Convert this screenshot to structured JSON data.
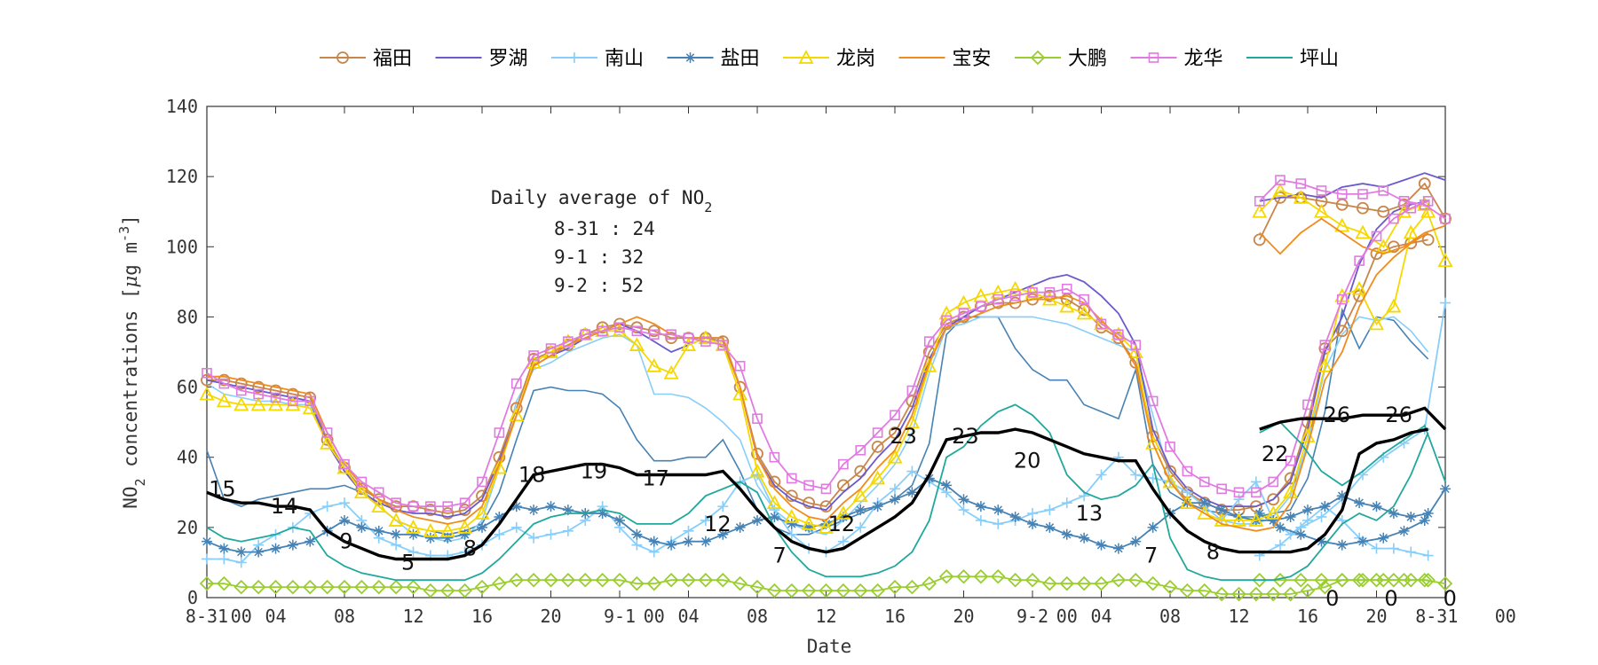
{
  "chart_data": {
    "type": "line",
    "title": "",
    "xlabel": "Date",
    "ylabel": "NO₂ concentrations [μg m⁻³]",
    "ylabel_parts": {
      "a": "NO",
      "sub": "2",
      "b": " concentrations [",
      "mu": "μ",
      "c": "g m",
      "sup": "-3",
      "d": "]"
    },
    "ylim": [
      0,
      140
    ],
    "yticks": [
      0,
      20,
      40,
      60,
      80,
      100,
      120,
      140
    ],
    "xlim": [
      0,
      72
    ],
    "xticks": [
      {
        "x": 0,
        "label": "8-31"
      },
      {
        "x": 4,
        "label": "04"
      },
      {
        "x": 8,
        "label": "08"
      },
      {
        "x": 12,
        "label": "12"
      },
      {
        "x": 16,
        "label": "16"
      },
      {
        "x": 20,
        "label": "20"
      },
      {
        "x": 24,
        "label": "9-1"
      },
      {
        "x": 28,
        "label": "04"
      },
      {
        "x": 32,
        "label": "08"
      },
      {
        "x": 36,
        "label": "12"
      },
      {
        "x": 40,
        "label": "16"
      },
      {
        "x": 44,
        "label": "20"
      },
      {
        "x": 48,
        "label": "9-2"
      },
      {
        "x": 52,
        "label": "04"
      },
      {
        "x": 56,
        "label": "08"
      },
      {
        "x": 60,
        "label": "12"
      },
      {
        "x": 64,
        "label": "16"
      },
      {
        "x": 68,
        "label": "20"
      }
    ],
    "xtick_overlays": [
      {
        "x": 2,
        "label": "00"
      },
      {
        "x": 26,
        "label": "00"
      },
      {
        "x": 50,
        "label": "00"
      },
      {
        "x": 71.5,
        "label": "8-31"
      },
      {
        "x": 75.5,
        "label": "00"
      }
    ],
    "legend_position": "top",
    "annotation": {
      "title_main": "Daily average of NO",
      "title_sub": "2",
      "lines": [
        "8-31 : 24",
        "9-1 : 32",
        "9-2 : 52"
      ]
    },
    "average_labels": [
      {
        "x": 1,
        "y": 31,
        "label": "15"
      },
      {
        "x": 5,
        "y": 26,
        "label": "14"
      },
      {
        "x": 9,
        "y": 16,
        "label": "9"
      },
      {
        "x": 13,
        "y": 10,
        "label": "5"
      },
      {
        "x": 17,
        "y": 14,
        "label": "8"
      },
      {
        "x": 21,
        "y": 35,
        "label": "18"
      },
      {
        "x": 25,
        "y": 36,
        "label": "19"
      },
      {
        "x": 29,
        "y": 34,
        "label": "17"
      },
      {
        "x": 33,
        "y": 21,
        "label": "12"
      },
      {
        "x": 37,
        "y": 12,
        "label": "7"
      },
      {
        "x": 41,
        "y": 21,
        "label": "12"
      },
      {
        "x": 45,
        "y": 46,
        "label": "23"
      },
      {
        "x": 49,
        "y": 46,
        "label": "23"
      },
      {
        "x": 53,
        "y": 39,
        "label": "20"
      },
      {
        "x": 57,
        "y": 24,
        "label": "13"
      },
      {
        "x": 61,
        "y": 12,
        "label": "7"
      },
      {
        "x": 65,
        "y": 13,
        "label": "8"
      },
      {
        "x": 69,
        "y": 41,
        "label": "22"
      },
      {
        "x": 73,
        "y": 52,
        "label": "26"
      },
      {
        "x": 77,
        "y": 52,
        "label": "26"
      }
    ],
    "outside_labels": [
      {
        "x": 72.7,
        "y": 0,
        "label": "0"
      },
      {
        "x": 76.5,
        "y": 0,
        "label": "0"
      },
      {
        "x": 80.3,
        "y": 0,
        "label": "0"
      }
    ],
    "series": [
      {
        "name": "福田",
        "color": "#c8864a",
        "marker": "circle",
        "values": [
          62,
          62,
          61,
          60,
          59,
          58,
          57,
          45,
          37,
          31,
          28,
          26,
          26,
          25,
          24,
          25,
          29,
          40,
          54,
          68,
          70,
          72,
          75,
          77,
          78,
          77,
          76,
          74,
          74,
          74,
          73,
          60,
          41,
          33,
          29,
          27,
          26,
          32,
          36,
          43,
          47,
          56,
          70,
          78,
          80,
          83,
          84,
          84,
          85,
          86,
          85,
          82,
          77,
          74,
          67,
          46,
          36,
          30,
          27,
          25,
          25,
          26,
          28,
          34,
          50,
          71,
          76,
          86,
          98,
          100,
          101,
          102
        ]
      },
      {
        "name": "罗湖",
        "color": "#6a5acd",
        "marker": "none",
        "values": [
          62,
          61,
          60,
          59,
          58,
          57,
          56,
          44,
          36,
          30,
          27,
          25,
          24,
          24,
          23,
          24,
          28,
          39,
          52,
          66,
          69,
          71,
          74,
          76,
          78,
          76,
          73,
          70,
          72,
          74,
          74,
          60,
          40,
          32,
          28,
          26,
          25,
          30,
          34,
          40,
          45,
          54,
          68,
          77,
          80,
          83,
          85,
          87,
          89,
          91,
          92,
          90,
          86,
          81,
          72,
          48,
          37,
          31,
          28,
          26,
          26,
          26,
          28,
          33,
          48,
          70,
          80,
          95,
          105,
          110,
          112,
          113
        ]
      },
      {
        "name": "南山",
        "color": "#87cefa",
        "marker": "plus",
        "values": [
          11,
          11,
          10,
          15,
          18,
          20,
          24,
          26,
          27,
          22,
          17,
          15,
          13,
          12,
          12,
          13,
          15,
          18,
          20,
          17,
          18,
          19,
          22,
          26,
          20,
          15,
          13,
          16,
          19,
          22,
          26,
          33,
          35,
          25,
          18,
          14,
          13,
          16,
          20,
          27,
          31,
          36,
          33,
          30,
          25,
          22,
          21,
          22,
          24,
          25,
          27,
          29,
          35,
          40,
          35,
          34,
          33,
          30,
          26,
          22,
          28,
          33,
          22,
          18,
          22,
          26,
          22,
          17,
          14,
          14,
          13,
          12
        ]
      },
      {
        "name": "盐田",
        "color": "#4682b4",
        "marker": "star",
        "values": [
          16,
          14,
          13,
          13,
          14,
          15,
          16,
          19,
          22,
          20,
          19,
          18,
          18,
          17,
          17,
          18,
          20,
          23,
          26,
          25,
          26,
          25,
          24,
          24,
          22,
          18,
          16,
          15,
          16,
          16,
          18,
          20,
          22,
          23,
          21,
          20,
          21,
          23,
          25,
          26,
          28,
          30,
          34,
          32,
          28,
          26,
          25,
          23,
          21,
          20,
          18,
          17,
          15,
          14,
          16,
          20,
          24,
          27,
          27,
          25,
          23,
          22,
          22,
          23,
          25,
          26,
          29,
          27,
          26,
          24,
          23,
          24
        ]
      },
      {
        "name": "龙岗",
        "color": "#f5d800",
        "marker": "triangle",
        "values": [
          58,
          56,
          55,
          55,
          55,
          55,
          54,
          44,
          37,
          30,
          26,
          22,
          20,
          19,
          19,
          20,
          24,
          37,
          52,
          67,
          70,
          73,
          75,
          76,
          76,
          72,
          66,
          64,
          72,
          74,
          72,
          58,
          36,
          27,
          23,
          21,
          20,
          24,
          29,
          34,
          40,
          50,
          66,
          81,
          84,
          86,
          87,
          88,
          87,
          85,
          83,
          81,
          78,
          75,
          70,
          44,
          33,
          27,
          24,
          22,
          22,
          22,
          24,
          30,
          46,
          66,
          86,
          88,
          78,
          83,
          104,
          110
        ]
      },
      {
        "name": "宝安",
        "color": "#f08c1e",
        "marker": "none",
        "values": [
          63,
          63,
          62,
          61,
          60,
          59,
          58,
          47,
          38,
          32,
          28,
          25,
          23,
          22,
          21,
          22,
          26,
          38,
          52,
          66,
          69,
          72,
          74,
          76,
          78,
          80,
          78,
          75,
          74,
          74,
          74,
          60,
          40,
          31,
          26,
          23,
          22,
          27,
          31,
          37,
          42,
          52,
          67,
          77,
          79,
          81,
          83,
          84,
          85,
          85,
          86,
          84,
          79,
          74,
          66,
          44,
          33,
          27,
          24,
          21,
          20,
          19,
          20,
          27,
          43,
          62,
          70,
          83,
          92,
          97,
          101,
          104
        ]
      },
      {
        "name": "大鹏",
        "color": "#9acd32",
        "marker": "diamond",
        "values": [
          4,
          4,
          3,
          3,
          3,
          3,
          3,
          3,
          3,
          3,
          3,
          3,
          3,
          2,
          2,
          2,
          3,
          4,
          5,
          5,
          5,
          5,
          5,
          5,
          5,
          4,
          4,
          5,
          5,
          5,
          5,
          4,
          3,
          2,
          2,
          2,
          2,
          2,
          2,
          2,
          3,
          3,
          4,
          6,
          6,
          6,
          6,
          5,
          5,
          4,
          4,
          4,
          4,
          5,
          5,
          4,
          3,
          2,
          2,
          1,
          1,
          1,
          1,
          1,
          2,
          3,
          5,
          5,
          5,
          5,
          5,
          5
        ]
      },
      {
        "name": "龙华",
        "color": "#e07be0",
        "marker": "square",
        "values": [
          64,
          61,
          59,
          58,
          57,
          56,
          56,
          47,
          38,
          33,
          30,
          27,
          26,
          26,
          26,
          27,
          33,
          47,
          61,
          69,
          71,
          73,
          75,
          76,
          77,
          76,
          75,
          75,
          74,
          73,
          72,
          66,
          51,
          40,
          34,
          32,
          31,
          38,
          42,
          47,
          52,
          59,
          73,
          79,
          81,
          83,
          85,
          86,
          87,
          87,
          88,
          85,
          78,
          75,
          72,
          56,
          43,
          36,
          33,
          31,
          30,
          30,
          33,
          39,
          55,
          72,
          85,
          96,
          103,
          108,
          111,
          113
        ]
      },
      {
        "name": "坪山",
        "color": "#20a89c",
        "marker": "none",
        "values": [
          20,
          17,
          16,
          17,
          18,
          20,
          19,
          12,
          9,
          7,
          6,
          5,
          5,
          5,
          5,
          5,
          7,
          11,
          16,
          21,
          23,
          24,
          24,
          25,
          24,
          21,
          21,
          21,
          24,
          29,
          31,
          33,
          30,
          20,
          13,
          8,
          6,
          6,
          6,
          7,
          9,
          13,
          22,
          40,
          43,
          49,
          53,
          55,
          52,
          47,
          35,
          30,
          28,
          29,
          32,
          38,
          17,
          8,
          6,
          5,
          5,
          5,
          5,
          6,
          9,
          15,
          21,
          24,
          22,
          26,
          35,
          47
        ]
      }
    ],
    "tail_series": [
      {
        "name": "福田",
        "color": "#c8864a",
        "marker": "circle",
        "values": [
          102,
          114,
          114,
          113,
          112,
          111,
          110,
          112,
          118,
          108
        ]
      },
      {
        "name": "罗湖",
        "color": "#6a5acd",
        "marker": "none",
        "values": [
          113,
          114,
          115,
          114,
          117,
          118,
          117,
          119,
          121,
          119
        ]
      },
      {
        "name": "南山",
        "color": "#87cefa",
        "marker": "plus",
        "values": [
          12,
          15,
          20,
          23,
          28,
          35,
          40,
          44,
          48,
          84
        ]
      },
      {
        "name": "盐田",
        "color": "#4682b4",
        "marker": "star",
        "values": [
          24,
          20,
          18,
          16,
          15,
          16,
          17,
          19,
          22,
          31
        ]
      },
      {
        "name": "龙岗",
        "color": "#f5d800",
        "marker": "triangle",
        "values": [
          110,
          116,
          114,
          110,
          106,
          104,
          100,
          110,
          112,
          96
        ]
      },
      {
        "name": "宝安",
        "color": "#f08c1e",
        "marker": "none",
        "values": [
          104,
          98,
          104,
          108,
          104,
          100,
          98,
          100,
          104,
          106
        ]
      },
      {
        "name": "大鹏",
        "color": "#9acd32",
        "marker": "diamond",
        "values": [
          5,
          5,
          5,
          5,
          5,
          5,
          5,
          5,
          5,
          4
        ]
      },
      {
        "name": "龙华",
        "color": "#e07be0",
        "marker": "square",
        "values": [
          113,
          119,
          118,
          116,
          115,
          115,
          116,
          113,
          112,
          108
        ]
      },
      {
        "name": "坪山",
        "color": "#20a89c",
        "marker": "none",
        "values": [
          47,
          50,
          44,
          36,
          32,
          36,
          41,
          45,
          49,
          33
        ]
      }
    ],
    "extra_lines": [
      {
        "name": "盐田-alt",
        "color": "#4682b4",
        "values": [
          42,
          28,
          26,
          28,
          29,
          30,
          31,
          31,
          32,
          30,
          26,
          22,
          20,
          19,
          18,
          19,
          21,
          30,
          45,
          59,
          60,
          59,
          59,
          58,
          54,
          45,
          39,
          39,
          40,
          40,
          45,
          36,
          25,
          20,
          18,
          18,
          20,
          22,
          24,
          26,
          28,
          32,
          44,
          75,
          80,
          80,
          80,
          71,
          65,
          62,
          62,
          55,
          53,
          51,
          65,
          38,
          30,
          27,
          25,
          24,
          23,
          23,
          24,
          25,
          34,
          53,
          82,
          71,
          80,
          79,
          73,
          68
        ]
      },
      {
        "name": "南山-alt",
        "color": "#87cefa",
        "values": [
          61,
          58,
          57,
          56,
          56,
          55,
          55,
          45,
          36,
          31,
          26,
          22,
          18,
          17,
          16,
          17,
          22,
          37,
          56,
          65,
          67,
          70,
          72,
          74,
          75,
          72,
          58,
          58,
          57,
          54,
          50,
          45,
          32,
          25,
          21,
          19,
          18,
          22,
          27,
          32,
          38,
          47,
          64,
          77,
          78,
          80,
          80,
          80,
          80,
          79,
          78,
          76,
          74,
          72,
          70,
          52,
          34,
          27,
          24,
          22,
          21,
          21,
          23,
          29,
          44,
          65,
          75,
          80,
          79,
          80,
          76,
          70
        ]
      }
    ],
    "average_series": {
      "name": "average",
      "color": "#000000",
      "values": [
        30,
        28,
        27,
        27,
        26,
        26,
        25,
        19,
        16,
        14,
        12,
        11,
        11,
        11,
        11,
        12,
        15,
        21,
        28,
        35,
        36,
        37,
        38,
        38,
        37,
        35,
        35,
        35,
        35,
        35,
        36,
        31,
        25,
        20,
        16,
        14,
        13,
        14,
        17,
        20,
        23,
        27,
        35,
        45,
        46,
        47,
        47,
        48,
        47,
        45,
        43,
        41,
        40,
        39,
        39,
        31,
        24,
        19,
        16,
        14,
        13,
        13,
        13,
        13,
        14,
        18,
        25,
        41,
        44,
        45,
        47,
        48
      ]
    },
    "average_tail": [
      48,
      50,
      51,
      51,
      51,
      52,
      52,
      52,
      54,
      48
    ]
  }
}
